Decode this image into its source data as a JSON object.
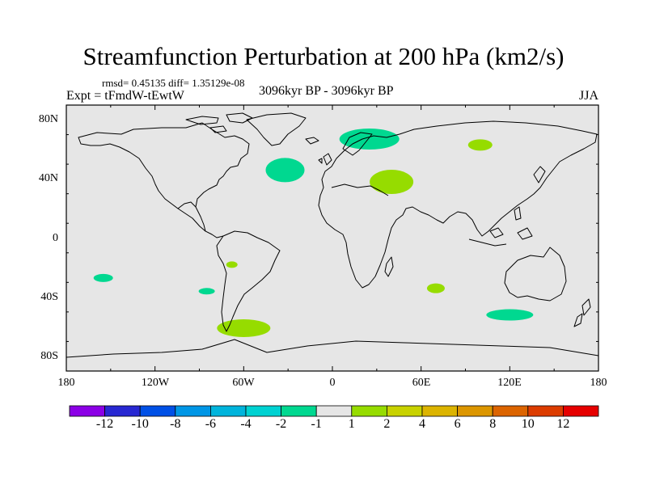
{
  "title": "Streamfunction Perturbation at 200 hPa (km2/s)",
  "stats": "rmsd= 0.45135 diff= 1.35129e-08",
  "expt": "Expt = tFmdW-tEwtW",
  "period": "3096kyr BP - 3096kyr BP",
  "season": "JJA",
  "map": {
    "background": "#e6e6e6",
    "y_ticks": [
      "80N",
      "40N",
      "0",
      "40S",
      "80S"
    ],
    "x_ticks": [
      "180",
      "120W",
      "60W",
      "0",
      "60E",
      "120E",
      "180"
    ]
  },
  "anomalies": [
    {
      "region": "North Atlantic",
      "lon": -32,
      "lat": 46,
      "level": "-2 to -1",
      "color": "#00d890"
    },
    {
      "region": "Scandinavia",
      "lon": 25,
      "lat": 67,
      "level": "-2 to -1",
      "color": "#00d890"
    },
    {
      "region": "Middle East",
      "lon": 40,
      "lat": 38,
      "level": "1 to 2",
      "color": "#96dc00"
    },
    {
      "region": "Central Asia",
      "lon": 100,
      "lat": 63,
      "level": "1 to 2",
      "color": "#96dc00"
    },
    {
      "region": "South America",
      "lon": -68,
      "lat": -18,
      "level": "1 to 2",
      "color": "#96dc00"
    },
    {
      "region": "South Pacific",
      "lon": -155,
      "lat": -27,
      "level": "-2 to -1",
      "color": "#00d890"
    },
    {
      "region": "Southeast Pacific",
      "lon": -85,
      "lat": -36,
      "level": "-2 to -1",
      "color": "#00d890"
    },
    {
      "region": "South Indian Ocean",
      "lon": 70,
      "lat": -34,
      "level": "1 to 2",
      "color": "#96dc00"
    },
    {
      "region": "Southern Ocean",
      "lon": 120,
      "lat": -52,
      "level": "-2 to -1",
      "color": "#00d890"
    },
    {
      "region": "Drake Passage",
      "lon": -60,
      "lat": -61,
      "level": "1 to 2",
      "color": "#96dc00"
    }
  ],
  "colorbar": {
    "colors": [
      "#8c00e6",
      "#2828d2",
      "#0050e6",
      "#0096e6",
      "#00b4dc",
      "#00d2d2",
      "#00d890",
      "#e6e6e6",
      "#96dc00",
      "#c8d200",
      "#dcb400",
      "#dc9600",
      "#dc6400",
      "#dc3c00",
      "#e60000"
    ],
    "labels": [
      "-12",
      "-10",
      "-8",
      "-6",
      "-4",
      "-2",
      "-1",
      "1",
      "2",
      "4",
      "6",
      "8",
      "10",
      "12"
    ]
  }
}
